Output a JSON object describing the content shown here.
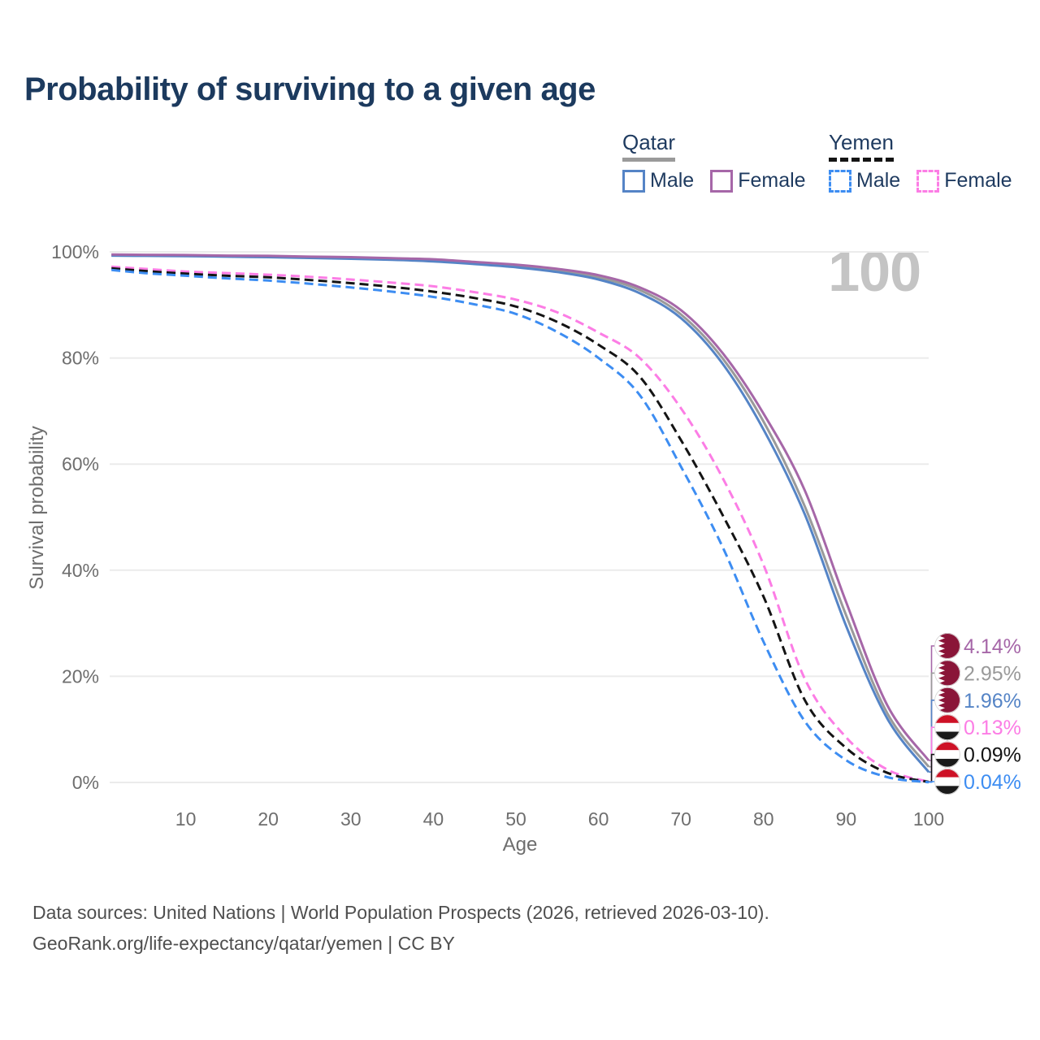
{
  "title": "Probability of surviving to a given age",
  "age_counter": "100",
  "legend": {
    "groups": [
      {
        "country": "Qatar",
        "line_style": "solid",
        "underline_color": "#9a9a9a",
        "items": [
          {
            "label": "Male",
            "color": "#5584c6",
            "dash": false
          },
          {
            "label": "Female",
            "color": "#a667a8",
            "dash": false
          }
        ]
      },
      {
        "country": "Yemen",
        "line_style": "dashed",
        "underline_color": "#141414",
        "items": [
          {
            "label": "Male",
            "color": "#3d8df2",
            "dash": true
          },
          {
            "label": "Female",
            "color": "#fc7de5",
            "dash": true
          }
        ]
      }
    ]
  },
  "chart_data": {
    "type": "line",
    "title": "Probability of surviving to a given age",
    "xlabel": "Age",
    "ylabel": "Survival probability",
    "xlim": [
      0,
      100
    ],
    "ylim": [
      0,
      100
    ],
    "x_ticks": [
      10,
      20,
      30,
      40,
      50,
      60,
      70,
      80,
      90,
      100
    ],
    "y_ticks": [
      "0%",
      "20%",
      "40%",
      "60%",
      "80%",
      "100%"
    ],
    "y_tick_values": [
      0,
      20,
      40,
      60,
      80,
      100
    ],
    "grid": "horizontal",
    "legend_position": "top-right",
    "ages": [
      1,
      5,
      10,
      15,
      20,
      25,
      30,
      35,
      40,
      45,
      50,
      55,
      60,
      65,
      70,
      75,
      80,
      85,
      90,
      95,
      100
    ],
    "series": [
      {
        "name": "Qatar Female",
        "country": "qatar",
        "sex": "female",
        "color": "#a667a8",
        "dash": false,
        "end_label": "4.14%",
        "values": [
          99.5,
          99.45,
          99.4,
          99.3,
          99.25,
          99.1,
          99.0,
          98.8,
          98.6,
          98.1,
          97.6,
          96.8,
          95.6,
          93.3,
          89.0,
          81.0,
          69.5,
          55.0,
          34.0,
          14.5,
          4.14
        ]
      },
      {
        "name": "Qatar",
        "country": "qatar",
        "sex": "both",
        "color": "#9a9a9a",
        "dash": false,
        "end_label": "2.95%",
        "values": [
          99.4,
          99.35,
          99.3,
          99.2,
          99.1,
          99.0,
          98.85,
          98.65,
          98.4,
          97.9,
          97.4,
          96.5,
          95.2,
          92.8,
          88.2,
          80.0,
          68.0,
          52.0,
          31.5,
          13.0,
          2.95
        ]
      },
      {
        "name": "Qatar Male",
        "country": "qatar",
        "sex": "male",
        "color": "#5584c6",
        "dash": false,
        "end_label": "1.96%",
        "values": [
          99.3,
          99.25,
          99.2,
          99.1,
          99.0,
          98.85,
          98.7,
          98.5,
          98.2,
          97.7,
          97.1,
          96.2,
          94.8,
          92.2,
          87.5,
          79.0,
          66.5,
          50.5,
          29.5,
          12.0,
          1.96
        ]
      },
      {
        "name": "Yemen Female",
        "country": "yemen",
        "sex": "female",
        "color": "#fc7de5",
        "dash": true,
        "end_label": "0.13%",
        "values": [
          97.2,
          96.8,
          96.3,
          96.0,
          95.7,
          95.3,
          94.8,
          94.2,
          93.5,
          92.4,
          91.0,
          88.6,
          84.8,
          80.0,
          70.5,
          57.5,
          41.0,
          19.5,
          8.5,
          2.4,
          0.13
        ]
      },
      {
        "name": "Yemen",
        "country": "yemen",
        "sex": "both",
        "color": "#141414",
        "dash": true,
        "end_label": "0.09%",
        "values": [
          96.9,
          96.4,
          95.9,
          95.5,
          95.2,
          94.7,
          94.1,
          93.4,
          92.5,
          91.3,
          89.7,
          86.8,
          82.5,
          76.5,
          64.5,
          50.5,
          35.0,
          15.5,
          6.5,
          1.8,
          0.09
        ]
      },
      {
        "name": "Yemen Male",
        "country": "yemen",
        "sex": "male",
        "color": "#3d8df2",
        "dash": true,
        "end_label": "0.04%",
        "values": [
          96.6,
          96.0,
          95.5,
          95.0,
          94.6,
          94.0,
          93.3,
          92.5,
          91.5,
          90.1,
          88.3,
          84.9,
          80.0,
          73.0,
          59.5,
          44.5,
          26.5,
          11.5,
          4.2,
          1.0,
          0.04
        ]
      }
    ],
    "flag_colors": {
      "qatar_maroon": "#8a1538",
      "yemen_red": "#ce1126",
      "yemen_black": "#1a1a1a"
    }
  },
  "footer": {
    "line1": "Data sources: United Nations | World Population Prospects (2026, retrieved 2026-03-10).",
    "line2": "GeoRank.org/life-expectancy/qatar/yemen | CC BY"
  }
}
